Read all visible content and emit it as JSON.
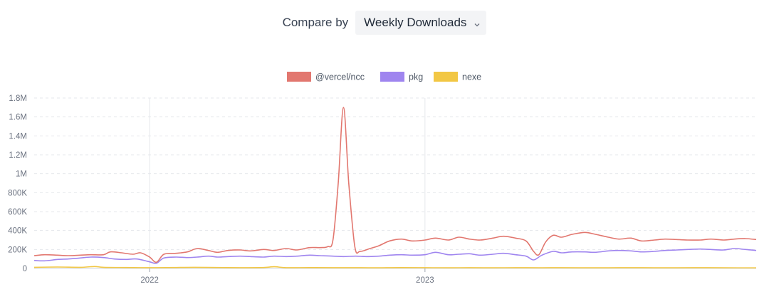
{
  "compare": {
    "label": "Compare by",
    "selected": "Weekly Downloads"
  },
  "icons": {
    "dropdown": "chevron-down-icon"
  },
  "chart_data": {
    "type": "line",
    "title": "",
    "xlabel": "",
    "ylabel": "",
    "ylim": [
      0,
      1800000
    ],
    "y_ticks": [
      0,
      200000,
      400000,
      600000,
      800000,
      1000000,
      1200000,
      1400000,
      1600000,
      1800000
    ],
    "y_tick_labels": [
      "0",
      "200K",
      "400K",
      "600K",
      "800K",
      "1M",
      "1.2M",
      "1.4M",
      "1.6M",
      "1.8M"
    ],
    "x_ticks": [
      {
        "date": "2022-01-01",
        "label": "2022"
      },
      {
        "date": "2023-01-01",
        "label": "2023"
      }
    ],
    "grid": true,
    "legend_position": "top-center",
    "series": [
      {
        "name": "@vercel/ncc",
        "color": "#e2776f",
        "points": [
          [
            "2021-08-01",
            135000
          ],
          [
            "2021-08-15",
            145000
          ],
          [
            "2021-09-01",
            140000
          ],
          [
            "2021-09-15",
            135000
          ],
          [
            "2021-10-01",
            140000
          ],
          [
            "2021-10-15",
            145000
          ],
          [
            "2021-11-01",
            145000
          ],
          [
            "2021-11-10",
            175000
          ],
          [
            "2021-11-25",
            165000
          ],
          [
            "2021-12-10",
            150000
          ],
          [
            "2021-12-20",
            165000
          ],
          [
            "2022-01-01",
            120000
          ],
          [
            "2022-01-10",
            65000
          ],
          [
            "2022-01-20",
            150000
          ],
          [
            "2022-02-05",
            160000
          ],
          [
            "2022-02-20",
            175000
          ],
          [
            "2022-03-05",
            210000
          ],
          [
            "2022-03-20",
            190000
          ],
          [
            "2022-04-01",
            170000
          ],
          [
            "2022-04-15",
            190000
          ],
          [
            "2022-05-01",
            195000
          ],
          [
            "2022-05-15",
            185000
          ],
          [
            "2022-06-01",
            200000
          ],
          [
            "2022-06-15",
            190000
          ],
          [
            "2022-07-01",
            210000
          ],
          [
            "2022-07-15",
            195000
          ],
          [
            "2022-08-01",
            220000
          ],
          [
            "2022-08-15",
            220000
          ],
          [
            "2022-08-25",
            230000
          ],
          [
            "2022-09-01",
            300000
          ],
          [
            "2022-09-08",
            900000
          ],
          [
            "2022-09-15",
            1700000
          ],
          [
            "2022-09-22",
            900000
          ],
          [
            "2022-09-30",
            230000
          ],
          [
            "2022-10-07",
            180000
          ],
          [
            "2022-10-20",
            210000
          ],
          [
            "2022-11-01",
            240000
          ],
          [
            "2022-11-15",
            290000
          ],
          [
            "2022-12-01",
            310000
          ],
          [
            "2022-12-15",
            290000
          ],
          [
            "2023-01-01",
            300000
          ],
          [
            "2023-01-15",
            320000
          ],
          [
            "2023-02-01",
            300000
          ],
          [
            "2023-02-15",
            330000
          ],
          [
            "2023-03-01",
            310000
          ],
          [
            "2023-03-15",
            300000
          ],
          [
            "2023-04-01",
            320000
          ],
          [
            "2023-04-15",
            340000
          ],
          [
            "2023-05-01",
            320000
          ],
          [
            "2023-05-15",
            290000
          ],
          [
            "2023-05-25",
            180000
          ],
          [
            "2023-06-01",
            145000
          ],
          [
            "2023-06-10",
            280000
          ],
          [
            "2023-06-20",
            350000
          ],
          [
            "2023-07-01",
            330000
          ],
          [
            "2023-07-15",
            360000
          ],
          [
            "2023-08-01",
            380000
          ],
          [
            "2023-08-15",
            360000
          ],
          [
            "2023-09-01",
            330000
          ],
          [
            "2023-09-15",
            310000
          ],
          [
            "2023-10-01",
            320000
          ],
          [
            "2023-10-15",
            290000
          ],
          [
            "2023-11-01",
            300000
          ],
          [
            "2023-11-15",
            310000
          ],
          [
            "2023-12-01",
            305000
          ],
          [
            "2023-12-15",
            300000
          ],
          [
            "2024-01-01",
            300000
          ],
          [
            "2024-01-15",
            310000
          ],
          [
            "2024-02-01",
            300000
          ],
          [
            "2024-02-15",
            310000
          ],
          [
            "2024-03-01",
            315000
          ],
          [
            "2024-03-15",
            305000
          ]
        ]
      },
      {
        "name": "pkg",
        "color": "#9f85ef",
        "points": [
          [
            "2021-08-01",
            85000
          ],
          [
            "2021-08-15",
            80000
          ],
          [
            "2021-09-01",
            95000
          ],
          [
            "2021-09-15",
            100000
          ],
          [
            "2021-10-01",
            110000
          ],
          [
            "2021-10-15",
            120000
          ],
          [
            "2021-11-01",
            115000
          ],
          [
            "2021-11-15",
            100000
          ],
          [
            "2021-12-01",
            95000
          ],
          [
            "2021-12-15",
            100000
          ],
          [
            "2022-01-01",
            70000
          ],
          [
            "2022-01-10",
            55000
          ],
          [
            "2022-01-20",
            110000
          ],
          [
            "2022-02-05",
            120000
          ],
          [
            "2022-02-20",
            115000
          ],
          [
            "2022-03-05",
            120000
          ],
          [
            "2022-03-20",
            130000
          ],
          [
            "2022-04-01",
            120000
          ],
          [
            "2022-04-15",
            125000
          ],
          [
            "2022-05-01",
            130000
          ],
          [
            "2022-05-15",
            125000
          ],
          [
            "2022-06-01",
            120000
          ],
          [
            "2022-06-15",
            130000
          ],
          [
            "2022-07-01",
            125000
          ],
          [
            "2022-07-15",
            130000
          ],
          [
            "2022-08-01",
            140000
          ],
          [
            "2022-08-15",
            135000
          ],
          [
            "2022-09-01",
            130000
          ],
          [
            "2022-09-15",
            125000
          ],
          [
            "2022-10-01",
            130000
          ],
          [
            "2022-10-15",
            125000
          ],
          [
            "2022-11-01",
            130000
          ],
          [
            "2022-11-15",
            140000
          ],
          [
            "2022-12-01",
            145000
          ],
          [
            "2022-12-15",
            140000
          ],
          [
            "2023-01-01",
            145000
          ],
          [
            "2023-01-15",
            170000
          ],
          [
            "2023-02-01",
            145000
          ],
          [
            "2023-02-15",
            150000
          ],
          [
            "2023-03-01",
            155000
          ],
          [
            "2023-03-15",
            140000
          ],
          [
            "2023-04-01",
            150000
          ],
          [
            "2023-04-15",
            160000
          ],
          [
            "2023-05-01",
            145000
          ],
          [
            "2023-05-15",
            130000
          ],
          [
            "2023-05-25",
            90000
          ],
          [
            "2023-06-05",
            140000
          ],
          [
            "2023-06-20",
            180000
          ],
          [
            "2023-07-01",
            165000
          ],
          [
            "2023-07-15",
            175000
          ],
          [
            "2023-08-01",
            175000
          ],
          [
            "2023-08-15",
            170000
          ],
          [
            "2023-09-01",
            185000
          ],
          [
            "2023-09-15",
            190000
          ],
          [
            "2023-10-01",
            185000
          ],
          [
            "2023-10-15",
            175000
          ],
          [
            "2023-11-01",
            180000
          ],
          [
            "2023-11-15",
            190000
          ],
          [
            "2023-12-01",
            195000
          ],
          [
            "2023-12-15",
            200000
          ],
          [
            "2024-01-01",
            205000
          ],
          [
            "2024-01-15",
            200000
          ],
          [
            "2024-02-01",
            195000
          ],
          [
            "2024-02-15",
            210000
          ],
          [
            "2024-03-01",
            200000
          ],
          [
            "2024-03-15",
            190000
          ]
        ]
      },
      {
        "name": "nexe",
        "color": "#f2c744",
        "points": [
          [
            "2021-08-01",
            12000
          ],
          [
            "2021-09-01",
            15000
          ],
          [
            "2021-10-01",
            12000
          ],
          [
            "2021-10-20",
            20000
          ],
          [
            "2021-11-01",
            12000
          ],
          [
            "2021-12-01",
            10000
          ],
          [
            "2022-01-01",
            8000
          ],
          [
            "2022-02-01",
            10000
          ],
          [
            "2022-03-01",
            12000
          ],
          [
            "2022-04-01",
            10000
          ],
          [
            "2022-05-01",
            8000
          ],
          [
            "2022-06-01",
            10000
          ],
          [
            "2022-06-15",
            18000
          ],
          [
            "2022-07-01",
            8000
          ],
          [
            "2022-08-01",
            9000
          ],
          [
            "2022-09-01",
            8000
          ],
          [
            "2022-10-01",
            8000
          ],
          [
            "2022-11-01",
            7000
          ],
          [
            "2022-12-01",
            9000
          ],
          [
            "2023-01-01",
            8000
          ],
          [
            "2023-02-01",
            7000
          ],
          [
            "2023-03-01",
            8000
          ],
          [
            "2023-04-01",
            7000
          ],
          [
            "2023-05-01",
            8000
          ],
          [
            "2023-06-01",
            7000
          ],
          [
            "2023-07-01",
            8000
          ],
          [
            "2023-08-01",
            7000
          ],
          [
            "2023-09-01",
            7000
          ],
          [
            "2023-10-01",
            8000
          ],
          [
            "2023-11-01",
            7000
          ],
          [
            "2023-12-01",
            7000
          ],
          [
            "2024-01-01",
            8000
          ],
          [
            "2024-02-01",
            7000
          ],
          [
            "2024-03-15",
            6000
          ]
        ]
      }
    ]
  }
}
